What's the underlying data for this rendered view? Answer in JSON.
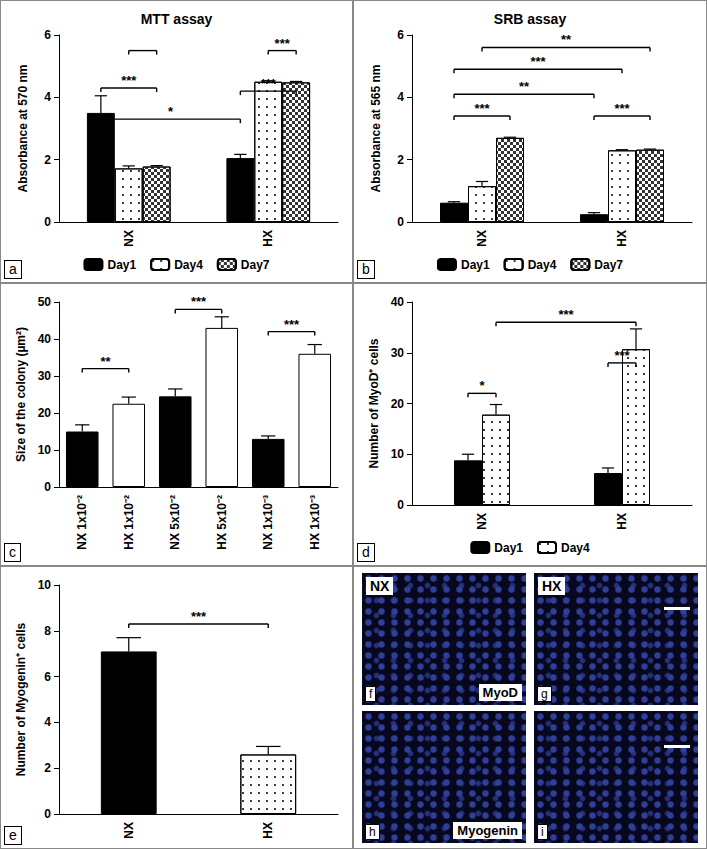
{
  "chart_data": [
    {
      "type": "bar",
      "title": "MTT assay",
      "y_label": "Absorbance at 570 nm",
      "panel_label": "a",
      "categories": [
        "NX",
        "HX"
      ],
      "series": [
        {
          "name": "Day1",
          "color": "#000000",
          "marker": "solid",
          "values": [
            3.5,
            2.05
          ],
          "errors": [
            0.55,
            0.12
          ]
        },
        {
          "name": "Day4",
          "color": "#ffffff",
          "marker": "dots",
          "values": [
            1.72,
            4.5
          ],
          "errors": [
            0.08,
            0.03
          ]
        },
        {
          "name": "Day7",
          "color": "#ffffff",
          "marker": "checks",
          "values": [
            1.78,
            4.48
          ],
          "errors": [
            0.03,
            0.03
          ]
        }
      ],
      "ylim": [
        0,
        6
      ],
      "yticks": [
        0,
        2,
        4,
        6
      ],
      "grid": false,
      "legend": "bottom",
      "significance": [
        {
          "from": {
            "category": "NX",
            "series": "Day4"
          },
          "to": {
            "category": "NX",
            "series": "Day7"
          },
          "y": 5.5
        },
        {
          "from": {
            "category": "NX",
            "series": "Day1"
          },
          "to": {
            "category": "NX",
            "series": "Day7"
          },
          "y": 4.3,
          "label": "***"
        },
        {
          "from": {
            "category": "NX",
            "series": "Day1"
          },
          "to": {
            "category": "HX",
            "series": "Day1"
          },
          "y": 3.3,
          "label": "*"
        },
        {
          "from": {
            "category": "HX",
            "series": "Day4"
          },
          "to": {
            "category": "HX",
            "series": "Day7"
          },
          "y": 5.5,
          "label": "***"
        },
        {
          "from": {
            "category": "HX",
            "series": "Day1"
          },
          "to": {
            "category": "HX",
            "series": "Day7"
          },
          "y": 4.2,
          "label": "***"
        }
      ]
    },
    {
      "type": "bar",
      "title": "SRB assay",
      "y_label": "Absorbance at 565 nm",
      "panel_label": "b",
      "categories": [
        "NX",
        "HX"
      ],
      "series": [
        {
          "name": "Day1",
          "color": "#000000",
          "marker": "solid",
          "values": [
            0.62,
            0.25
          ],
          "errors": [
            0.03,
            0.05
          ]
        },
        {
          "name": "Day4",
          "color": "#ffffff",
          "marker": "dots",
          "values": [
            1.15,
            2.3
          ],
          "errors": [
            0.15,
            0.02
          ]
        },
        {
          "name": "Day7",
          "color": "#ffffff",
          "marker": "checks",
          "values": [
            2.7,
            2.32
          ],
          "errors": [
            0.02,
            0.02
          ]
        }
      ],
      "ylim": [
        0,
        6
      ],
      "yticks": [
        0,
        2,
        4,
        6
      ],
      "grid": false,
      "legend": "bottom",
      "significance": [
        {
          "from": {
            "category": "NX",
            "series": "Day4"
          },
          "to": {
            "category": "HX",
            "series": "Day7"
          },
          "y": 5.6,
          "label": "**"
        },
        {
          "from": {
            "category": "NX",
            "series": "Day1"
          },
          "to": {
            "category": "HX",
            "series": "Day4"
          },
          "y": 4.9,
          "label": "***"
        },
        {
          "from": {
            "category": "NX",
            "series": "Day1"
          },
          "to": {
            "category": "HX",
            "series": "Day1"
          },
          "y": 4.1,
          "label": "**"
        },
        {
          "from": {
            "category": "NX",
            "series": "Day1"
          },
          "to": {
            "category": "NX",
            "series": "Day7"
          },
          "y": 3.4,
          "label": "***"
        },
        {
          "from": {
            "category": "HX",
            "series": "Day1"
          },
          "to": {
            "category": "HX",
            "series": "Day7"
          },
          "y": 3.4,
          "label": "***"
        }
      ]
    },
    {
      "type": "bar",
      "y_label": "Size of the colony (µm²)",
      "panel_label": "c",
      "categories": [
        "NX 1x10⁻²",
        "HX 1x10⁻²",
        "NX 5x10⁻²",
        "HX 5x10⁻²",
        "NX 1x10⁻³",
        "HX 1x10⁻³"
      ],
      "values": [
        15,
        22.5,
        24.5,
        43,
        13,
        36
      ],
      "errors": [
        1.8,
        1.8,
        2,
        3,
        0.8,
        2.5
      ],
      "colors": [
        "#000000",
        "#ffffff",
        "#000000",
        "#ffffff",
        "#000000",
        "#ffffff"
      ],
      "ylim": [
        0,
        50
      ],
      "yticks": [
        0,
        10,
        20,
        30,
        40,
        50
      ],
      "grid": false,
      "significance": [
        {
          "from": {
            "category": "NX 1x10⁻²"
          },
          "to": {
            "category": "HX 1x10⁻²"
          },
          "y": 32,
          "label": "**"
        },
        {
          "from": {
            "category": "NX 5x10⁻²"
          },
          "to": {
            "category": "HX 5x10⁻²"
          },
          "y": 48,
          "label": "***"
        },
        {
          "from": {
            "category": "NX 1x10⁻³"
          },
          "to": {
            "category": "HX 1x10⁻³"
          },
          "y": 42,
          "label": "***"
        }
      ]
    },
    {
      "type": "bar",
      "y_label": "Number of MyoD⁺ cells",
      "panel_label": "d",
      "categories": [
        "NX",
        "HX"
      ],
      "series": [
        {
          "name": "Day1",
          "color": "#000000",
          "marker": "solid",
          "values": [
            8.8,
            6.3
          ],
          "errors": [
            1.2,
            1
          ]
        },
        {
          "name": "Day4",
          "color": "#ffffff",
          "marker": "dots",
          "values": [
            17.8,
            30.7
          ],
          "errors": [
            2,
            4
          ]
        }
      ],
      "ylim": [
        0,
        40
      ],
      "yticks": [
        0,
        10,
        20,
        30,
        40
      ],
      "grid": false,
      "legend": "bottom",
      "significance": [
        {
          "from": {
            "category": "NX",
            "series": "Day1"
          },
          "to": {
            "category": "NX",
            "series": "Day4"
          },
          "y": 22,
          "label": "*"
        },
        {
          "from": {
            "category": "NX",
            "series": "Day4"
          },
          "to": {
            "category": "HX",
            "series": "Day4"
          },
          "y": 36,
          "label": "***"
        },
        {
          "from": {
            "category": "HX",
            "series": "Day1"
          },
          "to": {
            "category": "HX",
            "series": "Day4"
          },
          "y": 28,
          "label": "***"
        }
      ]
    },
    {
      "type": "bar",
      "y_label": "Number of Myogenin⁺ cells",
      "panel_label": "e",
      "categories": [
        "NX",
        "HX"
      ],
      "values": [
        7.1,
        2.6
      ],
      "errors": [
        0.6,
        0.35
      ],
      "colors": [
        "#000000",
        "#ffffff"
      ],
      "markers": [
        "solid",
        "dots"
      ],
      "ylim": [
        0,
        10
      ],
      "yticks": [
        0,
        2,
        4,
        6,
        8,
        10
      ],
      "grid": false,
      "significance": [
        {
          "from": {
            "category": "NX"
          },
          "to": {
            "category": "HX"
          },
          "y": 8.3,
          "label": "***"
        }
      ]
    }
  ],
  "micrographs": [
    {
      "panel": "f",
      "top_label": "NX",
      "bottom_label": "MyoD"
    },
    {
      "panel": "g",
      "top_label": "HX"
    },
    {
      "panel": "h",
      "bottom_label": "Myogenin"
    },
    {
      "panel": "i"
    }
  ]
}
